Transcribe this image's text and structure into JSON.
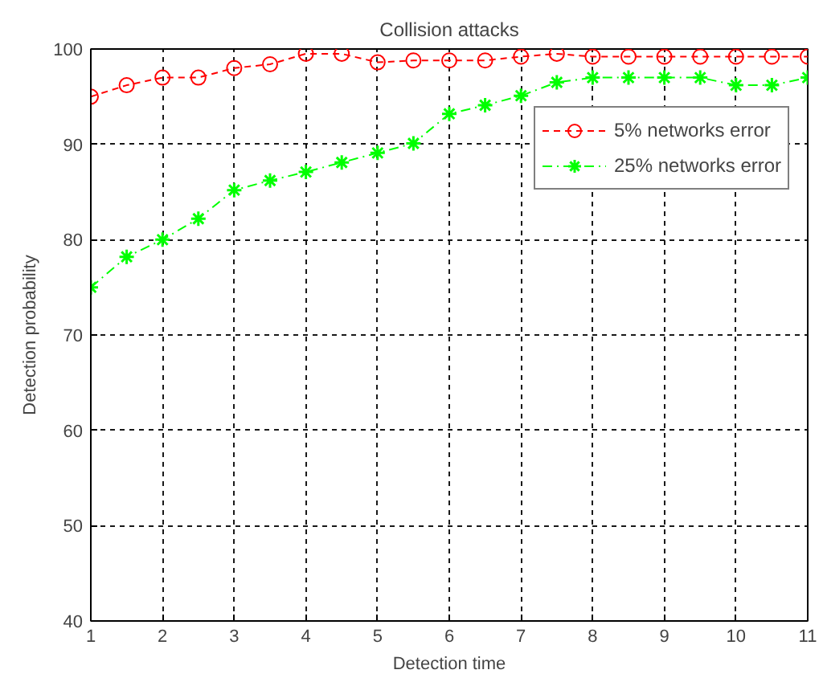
{
  "chart_data": {
    "type": "line",
    "title": "Collision attacks",
    "xlabel": "Detection time",
    "ylabel": "Detection probability",
    "x": [
      1,
      1.5,
      2,
      2.5,
      3,
      3.5,
      4,
      4.5,
      5,
      5.5,
      6,
      6.5,
      7,
      7.5,
      8,
      8.5,
      9,
      9.5,
      10,
      10.5,
      11
    ],
    "series": [
      {
        "name": "5% networks error",
        "color": "#ff0000",
        "marker": "circle",
        "line_style": "dashed",
        "values": [
          95,
          96.2,
          97,
          97,
          98,
          98.4,
          99.5,
          99.5,
          98.6,
          98.8,
          98.8,
          98.8,
          99.2,
          99.5,
          99.2,
          99.2,
          99.2,
          99.2,
          99.2,
          99.2,
          99.2
        ]
      },
      {
        "name": "25% networks error",
        "color": "#00ff00",
        "marker": "cross",
        "line_style": "dashdot",
        "values": [
          75,
          78.2,
          80,
          82.2,
          85.2,
          86.2,
          87.1,
          88.1,
          89.1,
          90.1,
          93.2,
          94.1,
          95.1,
          96.5,
          97,
          97,
          97,
          97,
          96.2,
          96.2,
          97
        ]
      }
    ],
    "xlim": [
      1,
      11
    ],
    "xticks": [
      1,
      2,
      3,
      4,
      5,
      6,
      7,
      8,
      9,
      10,
      11
    ],
    "ylim": [
      40,
      100
    ],
    "yticks": [
      40,
      50,
      60,
      70,
      80,
      90,
      100
    ],
    "grid": true,
    "legend": "top right"
  }
}
